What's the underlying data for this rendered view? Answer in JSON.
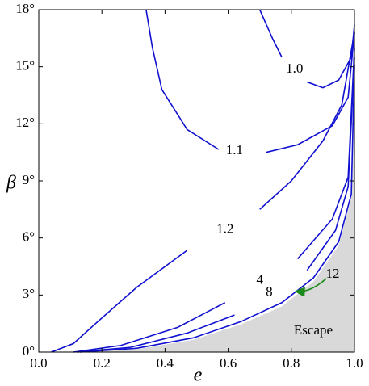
{
  "chart_data": {
    "type": "line",
    "xlabel": "e",
    "ylabel": "β",
    "xlim": [
      0,
      1
    ],
    "ylim": [
      0,
      18
    ],
    "xticks": [
      {
        "value": 0,
        "label": "0.0"
      },
      0.2,
      0.4,
      0.6,
      0.8,
      {
        "value": 1,
        "label": "1.0"
      }
    ],
    "yticks": [
      {
        "value": 0,
        "label": "0°"
      },
      {
        "value": 3,
        "label": "3°"
      },
      {
        "value": 6,
        "label": "6°"
      },
      {
        "value": 9,
        "label": "9°"
      },
      {
        "value": 12,
        "label": "12°"
      },
      {
        "value": 15,
        "label": "15°"
      },
      {
        "value": 18,
        "label": "18°"
      }
    ],
    "region": {
      "label": "Escape",
      "color": "#d9d9d9",
      "x": [
        0.13,
        0.31,
        0.49,
        0.64,
        0.77,
        0.87,
        0.95,
        0.99,
        1.0
      ],
      "values": [
        0,
        0.15,
        0.65,
        1.45,
        2.4,
        3.7,
        5.6,
        8.1,
        15
      ]
    },
    "series": [
      {
        "name": "1.0",
        "color": "#1010d0",
        "x": [
          0.7,
          0.74,
          0.77,
          0.81,
          0.85,
          0.9,
          0.95,
          0.99,
          1.0
        ],
        "values": [
          18,
          16.5,
          15.5,
          null,
          14.2,
          13.9,
          14.3,
          15.5,
          17.2
        ]
      },
      {
        "name": "1.1",
        "color": "#1010d0",
        "x": [
          0.34,
          0.36,
          0.39,
          0.47,
          0.57,
          0.62,
          0.72,
          0.82,
          0.93,
          0.98,
          1.0
        ],
        "values": [
          18,
          16,
          13.8,
          11.7,
          10.65,
          null,
          10.5,
          10.9,
          11.9,
          13.4,
          16.8
        ]
      },
      {
        "name": "1.2",
        "color": "#1010d0",
        "x": [
          0.04,
          0.11,
          0.18,
          0.31,
          0.47,
          0.59,
          0.7,
          0.8,
          0.9,
          0.96,
          1.0
        ],
        "values": [
          0,
          0.45,
          1.5,
          3.4,
          5.35,
          null,
          7.5,
          9.0,
          11.1,
          13.0,
          16.8
        ]
      },
      {
        "name": "4",
        "color": "#1010d0",
        "x": [
          0.11,
          0.26,
          0.44,
          0.59,
          0.7,
          0.82,
          0.93,
          0.98,
          1.0
        ],
        "values": [
          0,
          0.35,
          1.3,
          2.6,
          null,
          4.9,
          7.0,
          9.2,
          16
        ]
      },
      {
        "name": "8",
        "color": "#1010d0",
        "x": [
          0.12,
          0.29,
          0.47,
          0.62,
          0.73,
          0.85,
          0.94,
          0.98,
          1.0
        ],
        "values": [
          0,
          0.25,
          1.0,
          1.95,
          null,
          4.3,
          6.4,
          8.7,
          15.5
        ]
      },
      {
        "name": "12",
        "color": "#1010d0",
        "x": [
          0.13,
          0.31,
          0.49,
          0.64,
          0.77,
          0.87,
          0.95,
          0.99,
          1.0
        ],
        "values": [
          0,
          0.2,
          0.75,
          1.6,
          2.6,
          3.9,
          5.8,
          8.3,
          15.1
        ]
      }
    ]
  }
}
